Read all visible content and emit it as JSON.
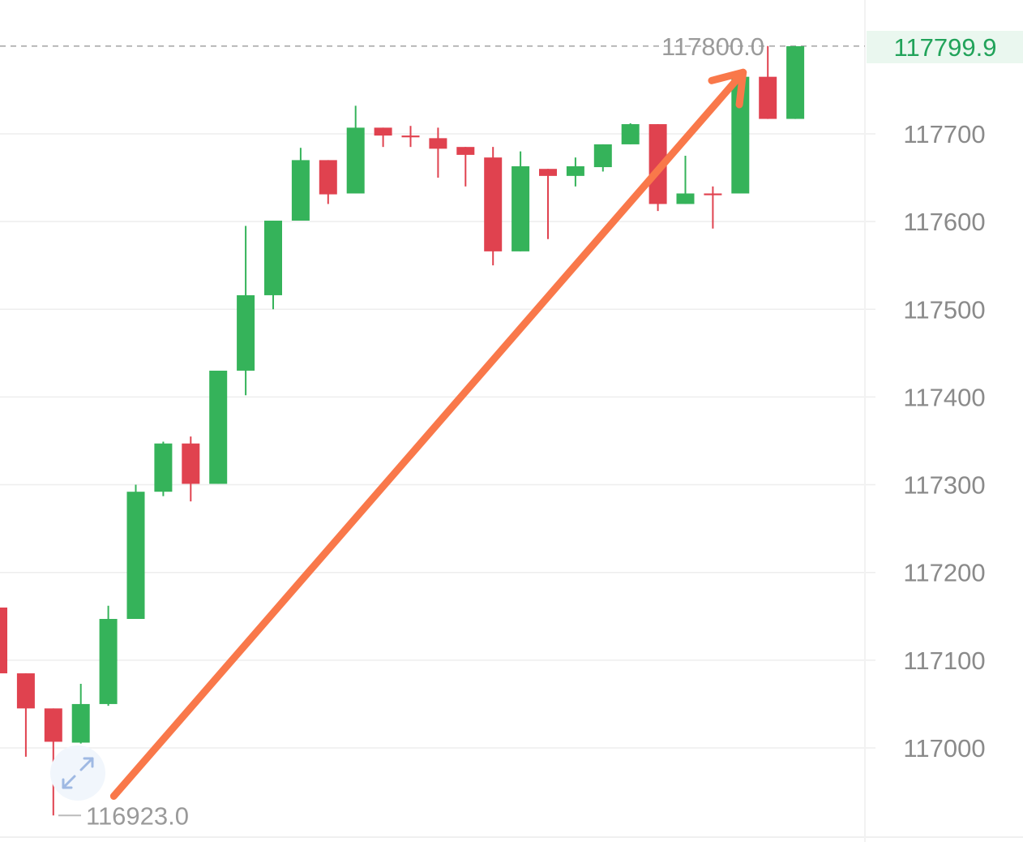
{
  "colors": {
    "up": "#35b35a",
    "down": "#e0424f",
    "trend_arrow": "#f9784a",
    "grid": "#eeeeee",
    "axis_text": "#8a8a8a",
    "last_price_text": "#21a35a",
    "last_price_bg": "#eaf7ef",
    "dashed_line": "#aaaaaa"
  },
  "icons": {
    "expand": "expand-arrows-icon"
  },
  "chart_data": {
    "type": "candlestick",
    "y_axis": {
      "position": "right",
      "ticks": [
        117000,
        117100,
        117200,
        117300,
        117400,
        117500,
        117600,
        117700
      ],
      "tick_labels": [
        "117000",
        "117100",
        "117200",
        "117300",
        "117400",
        "117500",
        "117600",
        "117700"
      ],
      "range": [
        116900,
        117820
      ]
    },
    "grid": true,
    "candles": [
      {
        "open": 117160,
        "close": 117085,
        "high": 117160,
        "low": 117085
      },
      {
        "open": 117085,
        "close": 117045,
        "high": 117085,
        "low": 116990
      },
      {
        "open": 117045,
        "close": 117007,
        "high": 117045,
        "low": 116923
      },
      {
        "open": 117006,
        "close": 117050,
        "high": 117073,
        "low": 117005
      },
      {
        "open": 117050,
        "close": 117147,
        "high": 117162,
        "low": 117048
      },
      {
        "open": 117147,
        "close": 117292,
        "high": 117300,
        "low": 117147
      },
      {
        "open": 117292,
        "close": 117347,
        "high": 117349,
        "low": 117287
      },
      {
        "open": 117347,
        "close": 117301,
        "high": 117355,
        "low": 117281
      },
      {
        "open": 117301,
        "close": 117430,
        "high": 117430,
        "low": 117301
      },
      {
        "open": 117430,
        "close": 117516,
        "high": 117595,
        "low": 117402
      },
      {
        "open": 117516,
        "close": 117601,
        "high": 117601,
        "low": 117500
      },
      {
        "open": 117601,
        "close": 117670,
        "high": 117684,
        "low": 117601
      },
      {
        "open": 117670,
        "close": 117631,
        "high": 117670,
        "low": 117620
      },
      {
        "open": 117632,
        "close": 117707,
        "high": 117732,
        "low": 117632
      },
      {
        "open": 117707,
        "close": 117698,
        "high": 117707,
        "low": 117685
      },
      {
        "open": 117698,
        "close": 117696,
        "high": 117709,
        "low": 117685
      },
      {
        "open": 117695,
        "close": 117683,
        "high": 117707,
        "low": 117650
      },
      {
        "open": 117685,
        "close": 117676,
        "high": 117685,
        "low": 117640
      },
      {
        "open": 117673,
        "close": 117566,
        "high": 117685,
        "low": 117550
      },
      {
        "open": 117566,
        "close": 117663,
        "high": 117680,
        "low": 117566
      },
      {
        "open": 117660,
        "close": 117652,
        "high": 117660,
        "low": 117580
      },
      {
        "open": 117652,
        "close": 117663,
        "high": 117673,
        "low": 117640
      },
      {
        "open": 117662,
        "close": 117688,
        "high": 117688,
        "low": 117657
      },
      {
        "open": 117688,
        "close": 117711,
        "high": 117712,
        "low": 117688
      },
      {
        "open": 117711,
        "close": 117620,
        "high": 117711,
        "low": 117612
      },
      {
        "open": 117620,
        "close": 117632,
        "high": 117675,
        "low": 117620
      },
      {
        "open": 117632,
        "close": 117630,
        "high": 117640,
        "low": 117592
      },
      {
        "open": 117632,
        "close": 117765,
        "high": 117765,
        "low": 117632
      },
      {
        "open": 117765,
        "close": 117717,
        "high": 117800,
        "low": 117717
      },
      {
        "open": 117717,
        "close": 117799.9,
        "high": 117799.9,
        "low": 117717
      }
    ],
    "annotations": {
      "max_label": "117800.0",
      "max_value": 117800.0,
      "min_label": "116923.0",
      "min_value": 116923.0,
      "last_price_label": "117799.9",
      "last_price_value": 117799.9
    },
    "trend_arrow": {
      "from_candle": 4.2,
      "from_value": 116945,
      "to_candle": 27.1,
      "to_value": 117770
    }
  }
}
